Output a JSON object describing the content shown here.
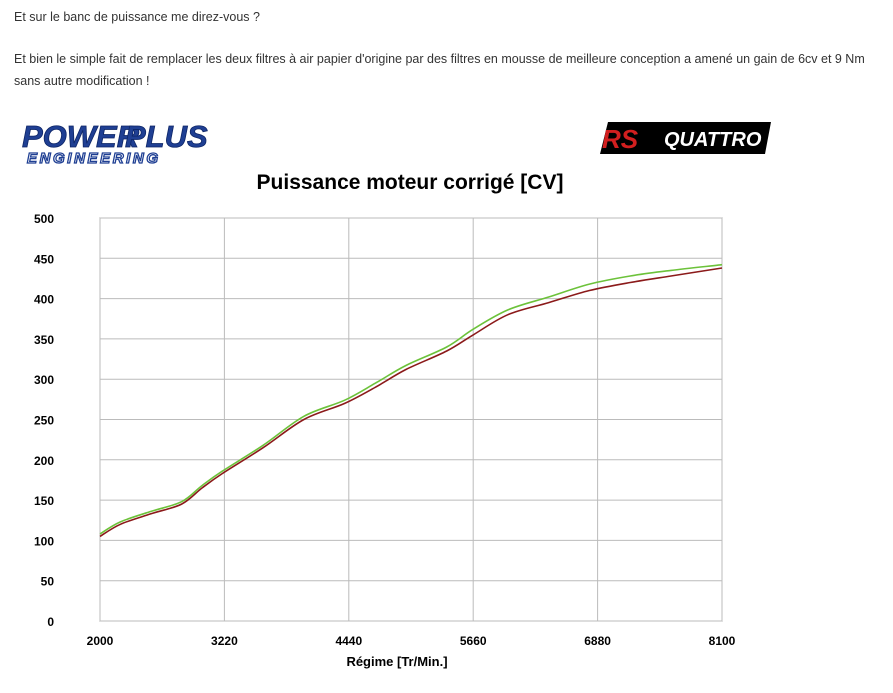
{
  "post": {
    "paragraph_1": "Et sur le banc de puissance  me direz-vous ?",
    "paragraph_2": "Et bien le simple fait de remplacer les deux filtres à air papier d'origine par des filtres en mousse de meilleure conception a amené un gain de 6cv et 9 Nm sans autre modification !"
  },
  "logos": {
    "powerplus_word_1": "POWER",
    "powerplus_word_2": "PLUS",
    "powerplus_sub": "ENGINEERING",
    "rs_letters": "RS",
    "quattro": "QUATTRO"
  },
  "colors": {
    "series_before": "#8b1a1a",
    "series_after": "#6cc23a",
    "grid": "#bbbbbb",
    "powerplus_blue": "#1f3f93"
  },
  "chart_data": {
    "type": "line",
    "title": "Puissance moteur corrigé [CV]",
    "xlabel": "Régime [Tr/Min.]",
    "ylabel": "",
    "xlim": [
      2000,
      8100
    ],
    "ylim": [
      0,
      500
    ],
    "xticks": [
      "2000",
      "3220",
      "4440",
      "5660",
      "6880",
      "8100"
    ],
    "yticks": [
      "0",
      "50",
      "100",
      "150",
      "200",
      "250",
      "300",
      "350",
      "400",
      "450",
      "500"
    ],
    "grid": true,
    "series": [
      {
        "color": "#8b1a1a",
        "x": [
          2000,
          2200,
          2500,
          2800,
          3000,
          3200,
          3600,
          4000,
          4400,
          4700,
          5000,
          5400,
          5660,
          6000,
          6400,
          6800,
          7200,
          7600,
          8100
        ],
        "y": [
          105,
          120,
          133,
          145,
          165,
          183,
          215,
          250,
          270,
          290,
          312,
          335,
          355,
          380,
          395,
          410,
          420,
          428,
          438
        ]
      },
      {
        "color": "#6cc23a",
        "x": [
          2000,
          2200,
          2500,
          2800,
          3000,
          3200,
          3600,
          4000,
          4400,
          4700,
          5000,
          5400,
          5660,
          6000,
          6400,
          6800,
          7200,
          7600,
          8100
        ],
        "y": [
          108,
          123,
          136,
          148,
          168,
          186,
          218,
          254,
          274,
          295,
          317,
          340,
          362,
          386,
          402,
          418,
          428,
          435,
          442
        ]
      }
    ]
  }
}
